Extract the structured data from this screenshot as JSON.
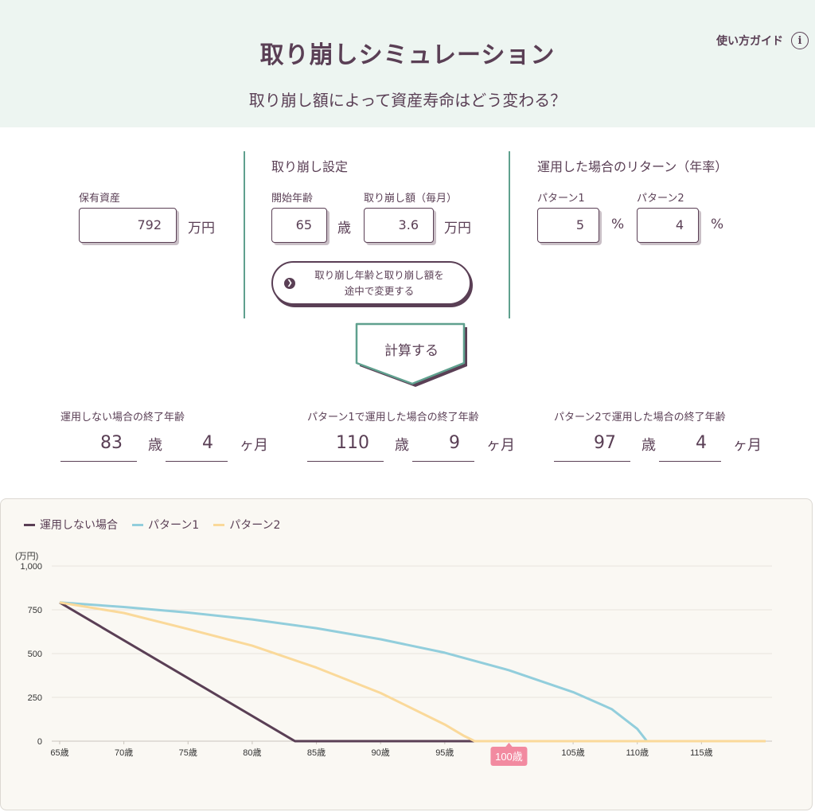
{
  "header": {
    "title": "取り崩しシミュレーション",
    "subtitle": "取り崩し額によって資産寿命はどう変わる？",
    "guide_label": "使い方ガイド",
    "guide_icon": "info-icon",
    "background": "#edf5f1"
  },
  "assets": {
    "label": "保有資産",
    "value": "792",
    "unit": "万円"
  },
  "withdrawal": {
    "section_title": "取り崩し設定",
    "start_age_label": "開始年齢",
    "start_age_value": "65",
    "start_age_unit": "歳",
    "amount_label": "取り崩し額（毎月）",
    "amount_value": "3.6",
    "amount_unit": "万円",
    "change_button_line1": "取り崩し年齢と取り崩し額を",
    "change_button_line2": "途中で変更する"
  },
  "returns": {
    "section_title": "運用した場合のリターン（年率）",
    "pattern1_label": "パターン1",
    "pattern1_value": "5",
    "pattern2_label": "パターン2",
    "pattern2_value": "4",
    "unit": "%"
  },
  "calculate_button": "計算する",
  "results": [
    {
      "label": "運用しない場合の終了年齢",
      "years": "83",
      "years_unit": "歳",
      "months": "4",
      "months_unit": "ヶ月"
    },
    {
      "label": "パターン1で運用した場合の終了年齢",
      "years": "110",
      "years_unit": "歳",
      "months": "9",
      "months_unit": "ヶ月"
    },
    {
      "label": "パターン2で運用した場合の終了年齢",
      "years": "97",
      "years_unit": "歳",
      "months": "4",
      "months_unit": "ヶ月"
    }
  ],
  "chart_data": {
    "type": "line",
    "ylabel": "(万円)",
    "ylim": [
      0,
      1000
    ],
    "xlim": [
      65,
      120
    ],
    "y_ticks": [
      0,
      250,
      500,
      750,
      1000
    ],
    "y_tick_labels": [
      "0",
      "250",
      "500",
      "750",
      "1,000"
    ],
    "x_ticks": [
      65,
      70,
      75,
      80,
      85,
      90,
      95,
      105,
      110,
      115
    ],
    "x_tick_labels": [
      "65歳",
      "70歳",
      "75歳",
      "80歳",
      "85歳",
      "90歳",
      "95歳",
      "105歳",
      "110歳",
      "115歳"
    ],
    "marker": {
      "x": 100,
      "label": "100歳",
      "color": "#f28aa0"
    },
    "legend_position": "top-left",
    "grid": true,
    "series": [
      {
        "name": "運用しない場合",
        "color": "#5a3f55",
        "x": [
          65,
          83,
          83.33,
          120
        ],
        "y": [
          792,
          14,
          0,
          0
        ]
      },
      {
        "name": "パターン1",
        "color": "#92cedc",
        "x": [
          65,
          70,
          75,
          80,
          85,
          90,
          95,
          100,
          105,
          108,
          110,
          110.75,
          120
        ],
        "y": [
          792,
          766,
          734,
          695,
          645,
          582,
          505,
          405,
          280,
          183,
          70,
          0,
          0
        ]
      },
      {
        "name": "パターン2",
        "color": "#fad99a",
        "x": [
          65,
          70,
          75,
          80,
          85,
          90,
          95,
          96.5,
          97.33,
          120
        ],
        "y": [
          792,
          732,
          640,
          545,
          420,
          275,
          95,
          30,
          0,
          0
        ]
      }
    ]
  }
}
